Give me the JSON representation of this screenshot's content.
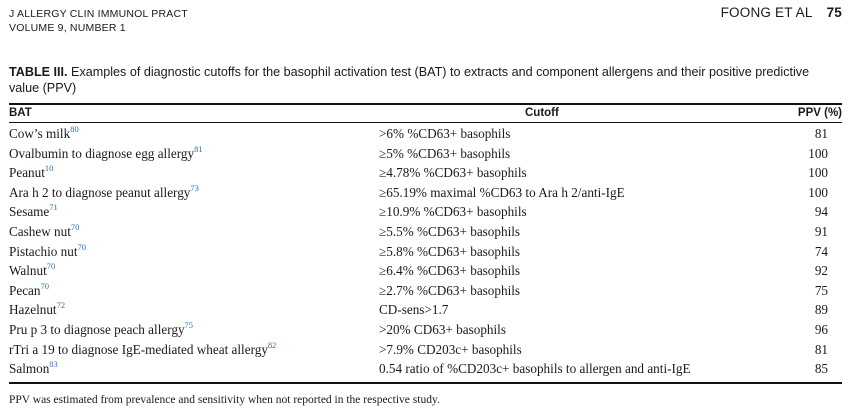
{
  "header": {
    "journal": "J ALLERGY CLIN IMMUNOL PRACT",
    "volume": "VOLUME 9, NUMBER 1",
    "authors": "FOONG ET AL",
    "page": "75"
  },
  "caption": {
    "label": "TABLE III.",
    "text": "Examples of diagnostic cutoffs for the basophil activation test (BAT) to extracts and component allergens and their positive predictive value (PPV)"
  },
  "table": {
    "columns": [
      "BAT",
      "Cutoff",
      "PPV (%)"
    ],
    "rows": [
      {
        "bat": "Cow’s milk",
        "ref": "80",
        "cutoff": ">6% %CD63+ basophils",
        "ppv": "81"
      },
      {
        "bat": "Ovalbumin to diagnose egg allergy",
        "ref": "81",
        "cutoff": "≥5% %CD63+ basophils",
        "ppv": "100"
      },
      {
        "bat": "Peanut",
        "ref": "10",
        "cutoff": "≥4.78% %CD63+ basophils",
        "ppv": "100"
      },
      {
        "bat": "Ara h 2 to diagnose peanut allergy",
        "ref": "73",
        "cutoff": "≥65.19% maximal %CD63 to Ara h 2/anti-IgE",
        "ppv": "100"
      },
      {
        "bat": "Sesame",
        "ref": "71",
        "cutoff": "≥10.9% %CD63+ basophils",
        "ppv": "94"
      },
      {
        "bat": "Cashew nut",
        "ref": "70",
        "cutoff": "≥5.5% %CD63+ basophils",
        "ppv": "91"
      },
      {
        "bat": "Pistachio nut",
        "ref": "70",
        "cutoff": "≥5.8% %CD63+ basophils",
        "ppv": "74"
      },
      {
        "bat": "Walnut",
        "ref": "70",
        "cutoff": "≥6.4% %CD63+ basophils",
        "ppv": "92"
      },
      {
        "bat": "Pecan",
        "ref": "70",
        "cutoff": "≥2.7% %CD63+ basophils",
        "ppv": "75"
      },
      {
        "bat": "Hazelnut",
        "ref": "72",
        "cutoff": "CD-sens>1.7",
        "ppv": "89"
      },
      {
        "bat": "Pru p 3 to diagnose peach allergy",
        "ref": "75",
        "cutoff": ">20% CD63+ basophils",
        "ppv": "96"
      },
      {
        "bat": "rTri a 19 to diagnose IgE-mediated wheat allergy",
        "ref": "82",
        "cutoff": ">7.9% CD203c+ basophils",
        "ppv": "81"
      },
      {
        "bat": "Salmon",
        "ref": "83",
        "cutoff": "0.54 ratio of %CD203c+ basophils to allergen and anti-IgE",
        "ppv": "85"
      }
    ]
  },
  "footnote": "PPV was estimated from prevalence and sensitivity when not reported in the respective study.",
  "colors": {
    "reference_link": "#2f6fb3",
    "text": "#1a1a1a"
  }
}
